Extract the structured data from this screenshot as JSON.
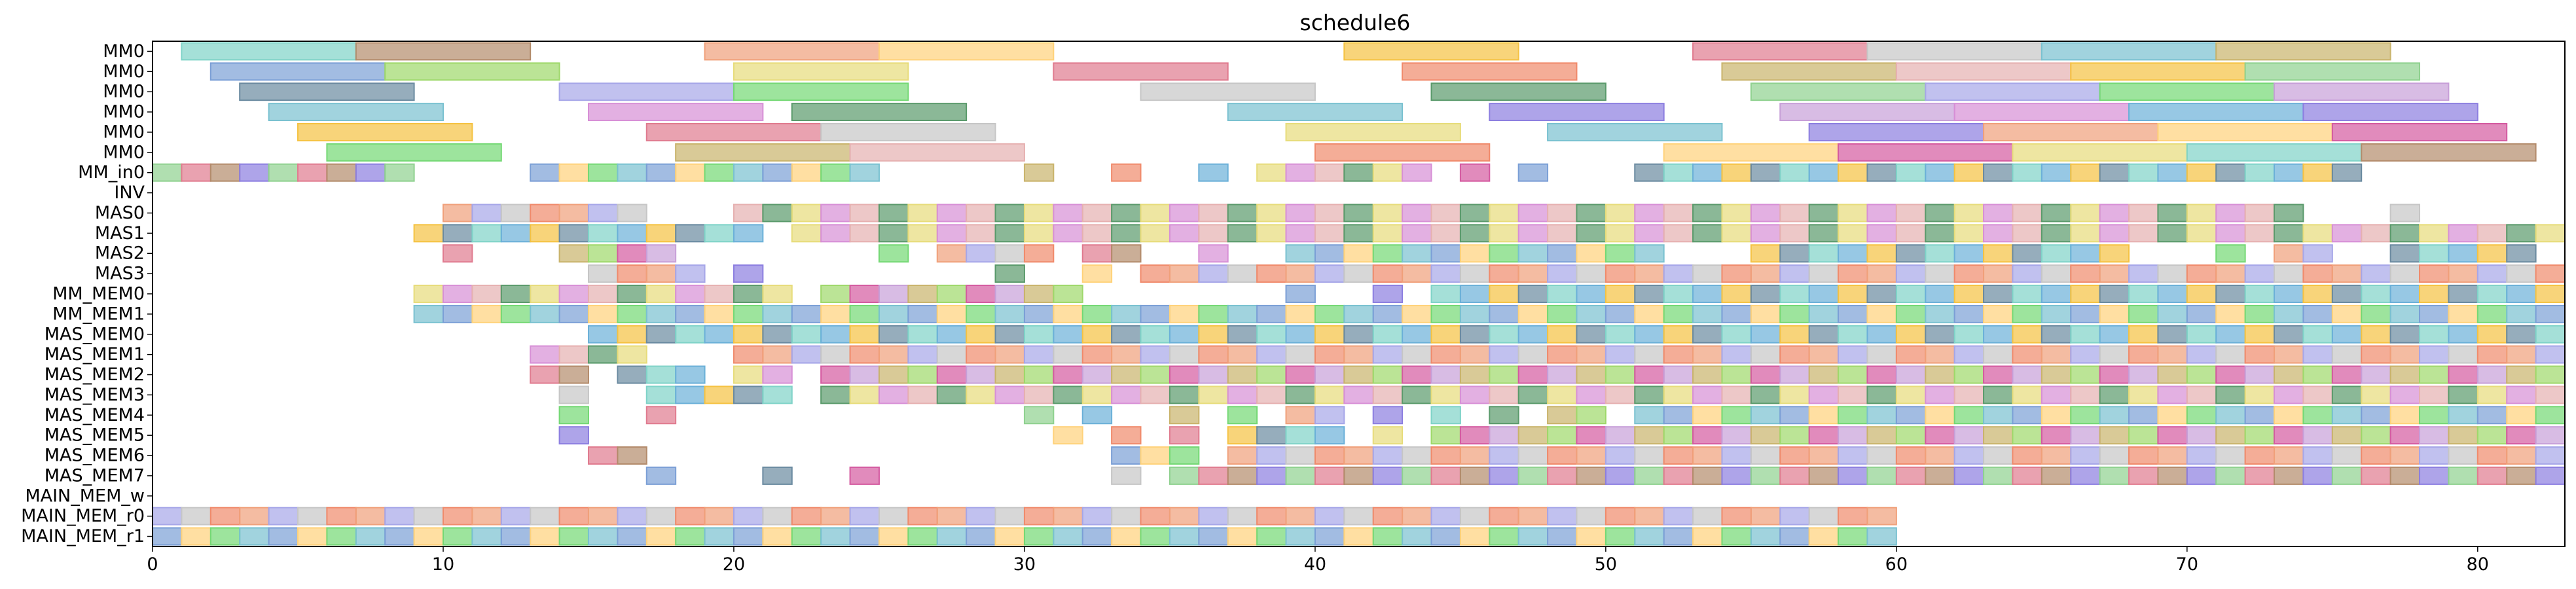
{
  "chart_data": {
    "type": "gantt",
    "title": "schedule6",
    "xlabel": "",
    "ylabel": "",
    "xlim": [
      0,
      83
    ],
    "x_ticks": [
      0,
      10,
      20,
      30,
      40,
      50,
      60,
      70,
      80
    ],
    "grid": false,
    "legend": "none",
    "rows": [
      "MM0",
      "MM0",
      "MM0",
      "MM0",
      "MM0",
      "MM0",
      "MM_in0",
      "INV",
      "MAS0",
      "MAS1",
      "MAS2",
      "MAS3",
      "MM_MEM0",
      "MM_MEM1",
      "MAS_MEM0",
      "MAS_MEM1",
      "MAS_MEM2",
      "MAS_MEM3",
      "MAS_MEM4",
      "MAS_MEM5",
      "MAS_MEM6",
      "MAS_MEM7",
      "MAIN_MEM_w",
      "MAIN_MEM_r0",
      "MAIN_MEM_r1"
    ],
    "palette": [
      "#8fd18f",
      "#f0a07a",
      "#7b9fd6",
      "#c9b36b",
      "#d78fd6",
      "#7fd3c8",
      "#e07b8f",
      "#a6a6e8",
      "#ffd27a",
      "#9ed86a",
      "#e6b0b0",
      "#6bb0d8",
      "#b38b6b",
      "#c6c6c6",
      "#74d874",
      "#d45aa0",
      "#5a9a6b",
      "#f5c242",
      "#8c7ee0",
      "#f08a6b",
      "#79c1d0",
      "#c79fd8",
      "#e7dc7a",
      "#6a8aa0"
    ],
    "bars": [
      {
        "row": 0,
        "start": 1,
        "end": 7
      },
      {
        "row": 0,
        "start": 7,
        "end": 13
      },
      {
        "row": 0,
        "start": 19,
        "end": 25
      },
      {
        "row": 0,
        "start": 25,
        "end": 31
      },
      {
        "row": 0,
        "start": 41,
        "end": 47
      },
      {
        "row": 0,
        "start": 53,
        "end": 59
      },
      {
        "row": 0,
        "start": 59,
        "end": 65
      },
      {
        "row": 0,
        "start": 65,
        "end": 71
      },
      {
        "row": 0,
        "start": 71,
        "end": 77
      },
      {
        "row": 1,
        "start": 2,
        "end": 8
      },
      {
        "row": 1,
        "start": 8,
        "end": 14
      },
      {
        "row": 1,
        "start": 20,
        "end": 26
      },
      {
        "row": 1,
        "start": 31,
        "end": 37
      },
      {
        "row": 1,
        "start": 43,
        "end": 49
      },
      {
        "row": 1,
        "start": 54,
        "end": 60
      },
      {
        "row": 1,
        "start": 60,
        "end": 66
      },
      {
        "row": 1,
        "start": 66,
        "end": 72
      },
      {
        "row": 1,
        "start": 72,
        "end": 78
      },
      {
        "row": 2,
        "start": 3,
        "end": 9
      },
      {
        "row": 2,
        "start": 14,
        "end": 20
      },
      {
        "row": 2,
        "start": 20,
        "end": 26
      },
      {
        "row": 2,
        "start": 34,
        "end": 40
      },
      {
        "row": 2,
        "start": 44,
        "end": 50
      },
      {
        "row": 2,
        "start": 55,
        "end": 61
      },
      {
        "row": 2,
        "start": 61,
        "end": 67
      },
      {
        "row": 2,
        "start": 67,
        "end": 73
      },
      {
        "row": 2,
        "start": 73,
        "end": 79
      },
      {
        "row": 3,
        "start": 4,
        "end": 10
      },
      {
        "row": 3,
        "start": 15,
        "end": 21
      },
      {
        "row": 3,
        "start": 22,
        "end": 28
      },
      {
        "row": 3,
        "start": 37,
        "end": 43
      },
      {
        "row": 3,
        "start": 46,
        "end": 52
      },
      {
        "row": 3,
        "start": 56,
        "end": 62
      },
      {
        "row": 3,
        "start": 62,
        "end": 68
      },
      {
        "row": 3,
        "start": 68,
        "end": 74
      },
      {
        "row": 3,
        "start": 74,
        "end": 80
      },
      {
        "row": 4,
        "start": 5,
        "end": 11
      },
      {
        "row": 4,
        "start": 17,
        "end": 23
      },
      {
        "row": 4,
        "start": 23,
        "end": 29
      },
      {
        "row": 4,
        "start": 39,
        "end": 45
      },
      {
        "row": 4,
        "start": 48,
        "end": 54
      },
      {
        "row": 4,
        "start": 57,
        "end": 63
      },
      {
        "row": 4,
        "start": 63,
        "end": 69
      },
      {
        "row": 4,
        "start": 69,
        "end": 75
      },
      {
        "row": 4,
        "start": 75,
        "end": 81
      },
      {
        "row": 5,
        "start": 6,
        "end": 12
      },
      {
        "row": 5,
        "start": 18,
        "end": 24
      },
      {
        "row": 5,
        "start": 24,
        "end": 30
      },
      {
        "row": 5,
        "start": 40,
        "end": 46
      },
      {
        "row": 5,
        "start": 52,
        "end": 58
      },
      {
        "row": 5,
        "start": 58,
        "end": 64
      },
      {
        "row": 5,
        "start": 64,
        "end": 70
      },
      {
        "row": 5,
        "start": 70,
        "end": 76
      },
      {
        "row": 5,
        "start": 76,
        "end": 82
      }
    ],
    "unit_slots": {
      "6": [
        0,
        1,
        2,
        3,
        4,
        5,
        6,
        7,
        8,
        13,
        14,
        15,
        16,
        17,
        18,
        19,
        20,
        21,
        22,
        23,
        24,
        30,
        33,
        36,
        38,
        39,
        40,
        41,
        42,
        43,
        45,
        47,
        51,
        52,
        53,
        54,
        55,
        56,
        57,
        58,
        59,
        60,
        61,
        62,
        63,
        64,
        65,
        66,
        67,
        68,
        69,
        70,
        71,
        72,
        73,
        74,
        75
      ],
      "8": [
        10,
        11,
        12,
        13,
        14,
        15,
        16,
        20,
        21,
        22,
        23,
        24,
        25,
        26,
        27,
        28,
        29,
        30,
        31,
        32,
        33,
        34,
        35,
        36,
        37,
        38,
        39,
        40,
        41,
        42,
        43,
        44,
        45,
        46,
        47,
        48,
        49,
        50,
        51,
        52,
        53,
        54,
        55,
        56,
        57,
        58,
        59,
        60,
        61,
        62,
        63,
        64,
        65,
        66,
        67,
        68,
        69,
        70,
        71,
        72,
        73,
        77
      ],
      "9": [
        9,
        10,
        11,
        12,
        13,
        14,
        15,
        16,
        17,
        18,
        19,
        20,
        22,
        23,
        24,
        25,
        26,
        27,
        28,
        29,
        30,
        31,
        32,
        33,
        34,
        35,
        36,
        37,
        38,
        39,
        40,
        41,
        42,
        43,
        44,
        45,
        46,
        47,
        48,
        49,
        50,
        51,
        52,
        53,
        54,
        55,
        56,
        57,
        58,
        59,
        60,
        61,
        62,
        63,
        64,
        65,
        66,
        67,
        68,
        69,
        70,
        71,
        72,
        73,
        74,
        75,
        76,
        77,
        78,
        79,
        80,
        81,
        82
      ],
      "10": [
        10,
        14,
        15,
        16,
        17,
        25,
        27,
        28,
        29,
        30,
        32,
        33,
        36,
        39,
        40,
        41,
        42,
        43,
        44,
        45,
        46,
        47,
        48,
        49,
        50,
        51,
        55,
        56,
        57,
        58,
        59,
        60,
        61,
        62,
        63,
        64,
        65,
        66,
        67,
        71,
        73,
        74,
        77,
        78,
        79,
        80,
        81
      ],
      "11": [
        15,
        16,
        17,
        18,
        20,
        29,
        32,
        34,
        35,
        36,
        37,
        38,
        39,
        40,
        41,
        42,
        43,
        44,
        45,
        46,
        47,
        48,
        49,
        50,
        51,
        52,
        53,
        54,
        55,
        56,
        57,
        58,
        59,
        60,
        61,
        62,
        63,
        64,
        65,
        66,
        67,
        68,
        69,
        70,
        71,
        72,
        73,
        74,
        75,
        76,
        77,
        78,
        79,
        80,
        81,
        82
      ],
      "12": [
        9,
        10,
        11,
        12,
        13,
        14,
        15,
        16,
        17,
        18,
        19,
        20,
        21,
        23,
        24,
        25,
        26,
        27,
        28,
        29,
        30,
        31,
        39,
        42,
        44,
        45,
        46,
        47,
        48,
        49,
        50,
        51,
        52,
        53,
        54,
        55,
        56,
        57,
        58,
        59,
        60,
        61,
        62,
        63,
        64,
        65,
        66,
        67,
        68,
        69,
        70,
        71,
        72,
        73,
        74,
        75,
        76,
        77,
        78,
        79,
        80,
        81,
        82
      ],
      "13": [
        9,
        10,
        11,
        12,
        13,
        14,
        15,
        16,
        17,
        18,
        19,
        20,
        21,
        22,
        23,
        24,
        25,
        26,
        27,
        28,
        29,
        30,
        31,
        32,
        33,
        34,
        35,
        36,
        37,
        38,
        39,
        40,
        41,
        42,
        43,
        44,
        45,
        46,
        47,
        48,
        49,
        50,
        51,
        52,
        53,
        54,
        55,
        56,
        57,
        58,
        59,
        60,
        61,
        62,
        63,
        64,
        65,
        66,
        67,
        68,
        69,
        70,
        71,
        72,
        73,
        74,
        75,
        76,
        77,
        78,
        79,
        80,
        81,
        82
      ],
      "14": [
        15,
        16,
        17,
        18,
        19,
        20,
        21,
        22,
        23,
        24,
        25,
        26,
        27,
        28,
        29,
        30,
        31,
        32,
        33,
        34,
        35,
        36,
        37,
        38,
        39,
        40,
        41,
        42,
        43,
        44,
        45,
        46,
        47,
        48,
        49,
        50,
        51,
        52,
        53,
        54,
        55,
        56,
        57,
        58,
        59,
        60,
        61,
        62,
        63,
        64,
        65,
        66,
        67,
        68,
        69,
        70,
        71,
        72,
        73,
        74,
        75,
        76,
        77,
        78,
        79,
        80,
        81,
        82
      ],
      "15": [
        13,
        14,
        15,
        16,
        20,
        21,
        22,
        23,
        24,
        25,
        26,
        27,
        28,
        29,
        30,
        31,
        32,
        33,
        34,
        35,
        36,
        37,
        38,
        39,
        40,
        41,
        42,
        43,
        44,
        45,
        46,
        47,
        48,
        49,
        50,
        51,
        52,
        53,
        54,
        55,
        56,
        57,
        58,
        59,
        60,
        61,
        62,
        63,
        64,
        65,
        66,
        67,
        68,
        69,
        70,
        71,
        72,
        73,
        74,
        75,
        76,
        77,
        78,
        79,
        80,
        81,
        82
      ],
      "16": [
        13,
        14,
        16,
        17,
        18,
        20,
        21,
        23,
        24,
        25,
        26,
        27,
        28,
        29,
        30,
        31,
        32,
        33,
        34,
        35,
        36,
        37,
        38,
        39,
        40,
        41,
        42,
        43,
        44,
        45,
        46,
        47,
        48,
        49,
        50,
        51,
        52,
        53,
        54,
        55,
        56,
        57,
        58,
        59,
        60,
        61,
        62,
        63,
        64,
        65,
        66,
        67,
        68,
        69,
        70,
        71,
        72,
        73,
        74,
        75,
        76,
        77,
        78,
        79,
        80,
        81,
        82
      ],
      "17": [
        14,
        17,
        18,
        19,
        20,
        21,
        23,
        24,
        25,
        26,
        27,
        28,
        29,
        30,
        31,
        32,
        33,
        34,
        35,
        36,
        37,
        38,
        39,
        40,
        41,
        42,
        43,
        44,
        45,
        46,
        47,
        48,
        49,
        50,
        51,
        52,
        53,
        54,
        55,
        56,
        57,
        58,
        59,
        60,
        61,
        62,
        63,
        64,
        65,
        66,
        67,
        68,
        69,
        70,
        71,
        72,
        73,
        74,
        75,
        76,
        77,
        78,
        79,
        80,
        81,
        82
      ],
      "18": [
        14,
        17,
        30,
        32,
        35,
        37,
        39,
        40,
        42,
        44,
        46,
        48,
        49,
        51,
        52,
        53,
        54,
        55,
        56,
        57,
        58,
        59,
        60,
        61,
        62,
        63,
        64,
        65,
        66,
        67,
        68,
        69,
        70,
        71,
        72,
        73,
        74,
        75,
        76,
        77,
        78,
        79,
        80,
        81,
        82
      ],
      "19": [
        14,
        31,
        33,
        35,
        37,
        38,
        39,
        40,
        42,
        44,
        45,
        46,
        47,
        48,
        49,
        50,
        51,
        52,
        53,
        54,
        55,
        56,
        57,
        58,
        59,
        60,
        61,
        62,
        63,
        64,
        65,
        66,
        67,
        68,
        69,
        70,
        71,
        72,
        73,
        74,
        75,
        76,
        77,
        78,
        79,
        80,
        81,
        82
      ],
      "20": [
        15,
        16,
        33,
        34,
        35,
        37,
        38,
        39,
        40,
        41,
        42,
        43,
        44,
        45,
        46,
        47,
        48,
        49,
        50,
        51,
        52,
        53,
        54,
        55,
        56,
        57,
        58,
        59,
        60,
        61,
        62,
        63,
        64,
        65,
        66,
        67,
        68,
        69,
        70,
        71,
        72,
        73,
        74,
        75,
        76,
        77,
        78,
        79,
        80,
        81,
        82
      ],
      "21": [
        17,
        21,
        24,
        33,
        35,
        36,
        37,
        38,
        39,
        40,
        41,
        42,
        43,
        44,
        45,
        46,
        47,
        48,
        49,
        50,
        51,
        52,
        53,
        54,
        55,
        56,
        57,
        58,
        59,
        60,
        61,
        62,
        63,
        64,
        65,
        66,
        67,
        68,
        69,
        70,
        71,
        72,
        73,
        74,
        75,
        76,
        77,
        78,
        79,
        80,
        81,
        82
      ],
      "23": [
        0,
        1,
        2,
        3,
        4,
        5,
        6,
        7,
        8,
        9,
        10,
        11,
        12,
        13,
        14,
        15,
        16,
        17,
        18,
        19,
        20,
        21,
        22,
        23,
        24,
        25,
        26,
        27,
        28,
        29,
        30,
        31,
        32,
        33,
        34,
        35,
        36,
        37,
        38,
        39,
        40,
        41,
        42,
        43,
        44,
        45,
        46,
        47,
        48,
        49,
        50,
        51,
        52,
        53,
        54,
        55,
        56,
        57,
        58,
        59
      ],
      "24": [
        0,
        1,
        2,
        3,
        4,
        5,
        6,
        7,
        8,
        9,
        10,
        11,
        12,
        13,
        14,
        15,
        16,
        17,
        18,
        19,
        20,
        21,
        22,
        23,
        24,
        25,
        26,
        27,
        28,
        29,
        30,
        31,
        32,
        33,
        34,
        35,
        36,
        37,
        38,
        39,
        40,
        41,
        42,
        43,
        44,
        45,
        46,
        47,
        48,
        49,
        50,
        51,
        52,
        53,
        54,
        55,
        56,
        57,
        58,
        59
      ]
    }
  }
}
